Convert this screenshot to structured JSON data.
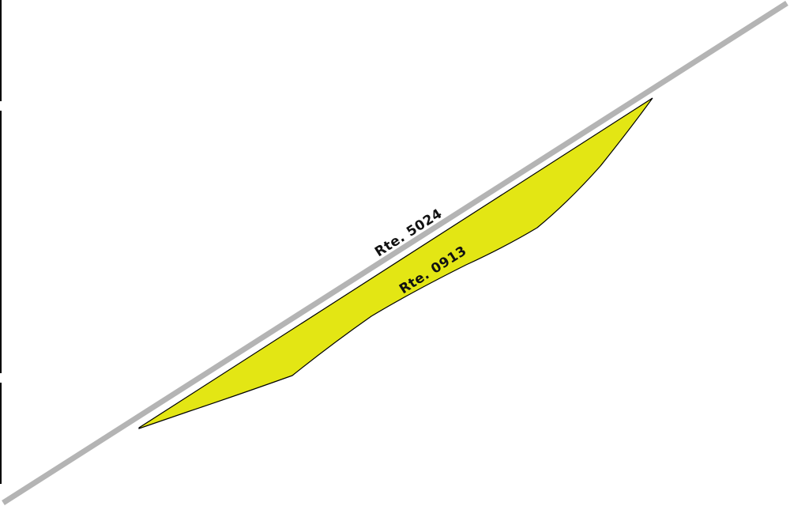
{
  "map": {
    "roads": [
      {
        "label": "Rte. 5024",
        "color": "#b4b4b4"
      }
    ],
    "parcels": [
      {
        "label": "Rte. 0913",
        "fill": "#e3e614",
        "outline": "#000000"
      }
    ],
    "frame_color": "#000000"
  }
}
